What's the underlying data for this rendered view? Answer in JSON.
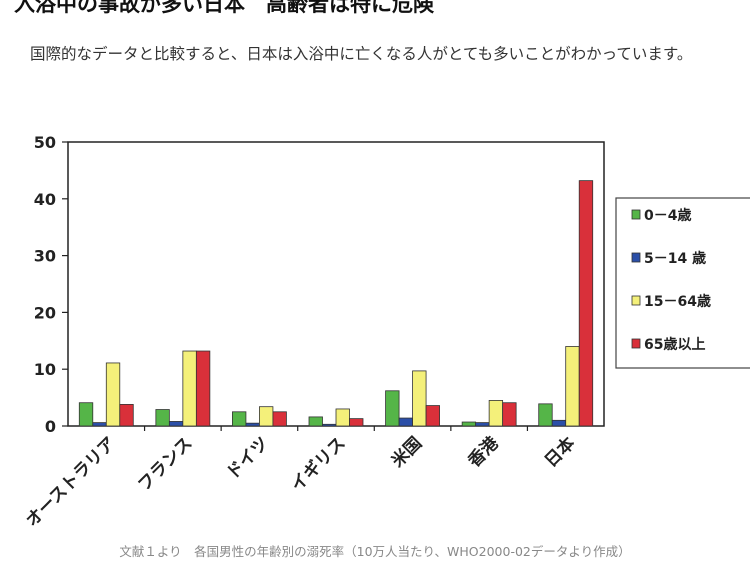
{
  "article": {
    "heading": "入浴中の事故が多い日本　高齢者は特に危険",
    "paragraph": "国際的なデータと比較すると、日本は入浴中に亡くなる人がとても多いことがわかっています。",
    "caption": "文献１より　各国男性の年齢別の溺死率（10万人当たり、WHO2000-02データより作成）"
  },
  "chart_data": {
    "type": "bar",
    "title": "",
    "xlabel": "",
    "ylabel": "",
    "ylim": [
      0,
      50
    ],
    "yticks": [
      0,
      10,
      20,
      30,
      40,
      50
    ],
    "grid": false,
    "legend_position": "right",
    "categories": [
      "オーストラリア",
      "フランス",
      "ドイツ",
      "イギリス",
      "米国",
      "香港",
      "日本"
    ],
    "series": [
      {
        "name": "0－4歳",
        "color": "#55b548",
        "values": [
          4.1,
          2.9,
          2.5,
          1.6,
          6.2,
          0.7,
          3.9
        ]
      },
      {
        "name": "5－14 歳",
        "color": "#2b4fa8",
        "values": [
          0.6,
          0.8,
          0.5,
          0.3,
          1.4,
          0.6,
          1.0
        ]
      },
      {
        "name": "15－64歳",
        "color": "#f4f07a",
        "values": [
          11.1,
          13.2,
          3.4,
          3.0,
          9.7,
          4.5,
          14.0
        ]
      },
      {
        "name": "65歳以上",
        "color": "#d9303a",
        "values": [
          3.8,
          13.2,
          2.5,
          1.3,
          3.6,
          4.1,
          43.2
        ]
      }
    ]
  }
}
